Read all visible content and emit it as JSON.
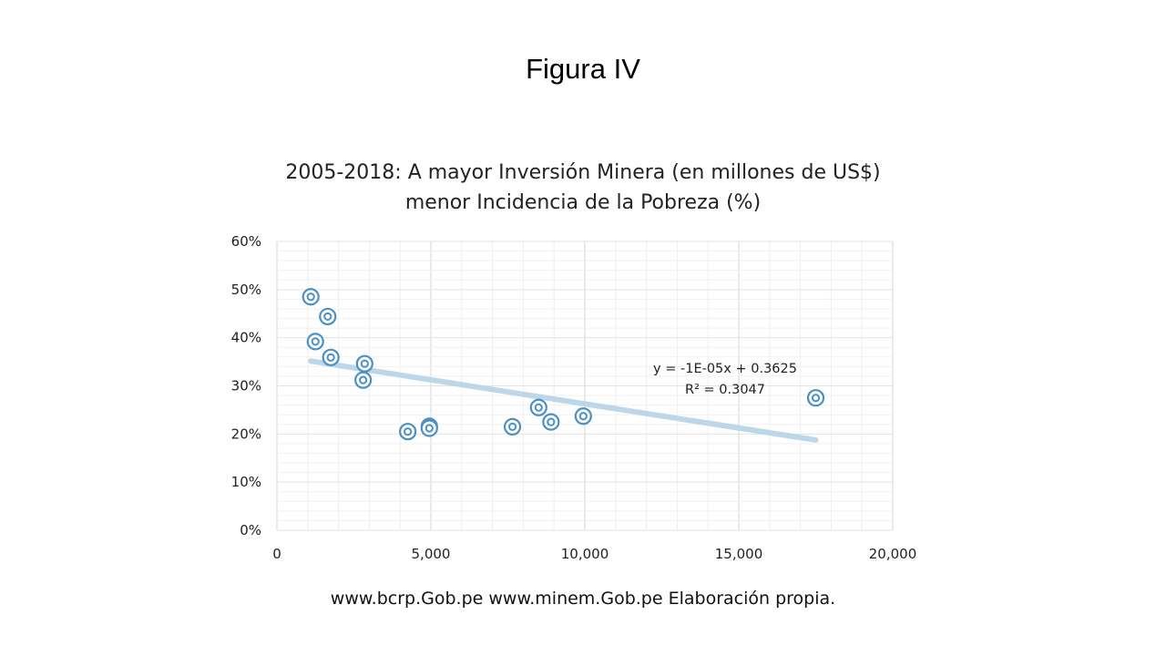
{
  "slide": {
    "title": "Figura IV",
    "source": "www.bcrp.Gob.pe www.minem.Gob.pe Elaboración propia."
  },
  "chart_data": {
    "type": "scatter",
    "title": "2005-2018: A mayor Inversión Minera (en millones de US$) menor Incidencia de la Pobreza (%)",
    "xlabel": "",
    "ylabel": "",
    "xlim": [
      0,
      20000
    ],
    "ylim": [
      0,
      0.6
    ],
    "x_ticks": [
      0,
      5000,
      10000,
      15000,
      20000
    ],
    "x_tick_labels": [
      "0",
      "5,000",
      "10,000",
      "15,000",
      "20,000"
    ],
    "y_ticks": [
      0,
      0.1,
      0.2,
      0.3,
      0.4,
      0.5,
      0.6
    ],
    "y_tick_labels": [
      "0%",
      "10%",
      "20%",
      "30%",
      "40%",
      "50%",
      "60%"
    ],
    "grid": true,
    "colors": {
      "marker": "#4a90c4",
      "trendline": "#bcd6ea",
      "grid": "#e3e3e3"
    },
    "points": [
      {
        "x": 1100,
        "y": 0.485
      },
      {
        "x": 1250,
        "y": 0.392
      },
      {
        "x": 1650,
        "y": 0.444
      },
      {
        "x": 1750,
        "y": 0.359
      },
      {
        "x": 2800,
        "y": 0.312
      },
      {
        "x": 2850,
        "y": 0.346
      },
      {
        "x": 4250,
        "y": 0.205
      },
      {
        "x": 4950,
        "y": 0.216
      },
      {
        "x": 4950,
        "y": 0.212
      },
      {
        "x": 7650,
        "y": 0.215
      },
      {
        "x": 8500,
        "y": 0.255
      },
      {
        "x": 8900,
        "y": 0.225
      },
      {
        "x": 9950,
        "y": 0.237
      },
      {
        "x": 17500,
        "y": 0.275
      }
    ],
    "trendline": {
      "x_range": [
        1100,
        17500
      ],
      "equation": "y = -1E-05x + 0.3625",
      "r_squared": "R² = 0.3047"
    }
  }
}
